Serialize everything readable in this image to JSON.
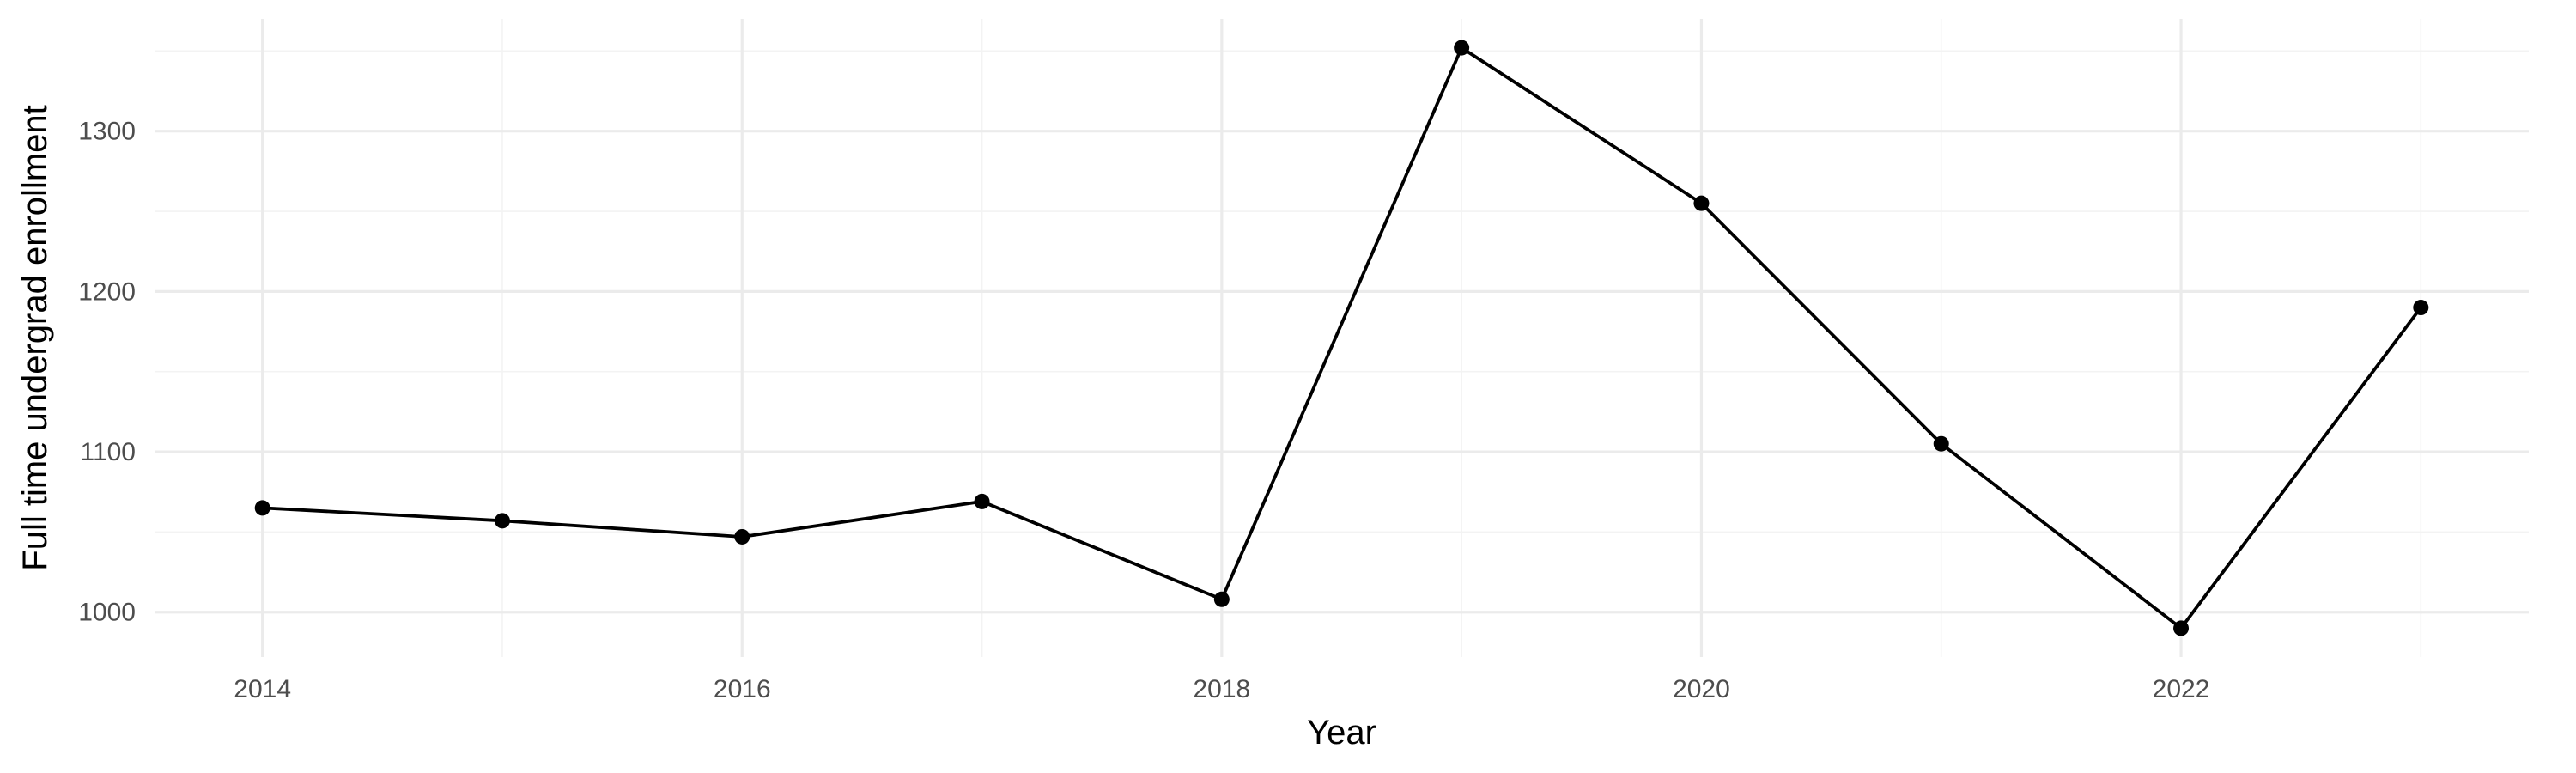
{
  "chart_data": {
    "type": "line",
    "title": "",
    "xlabel": "Year",
    "ylabel": "Full time undergrad enrollment",
    "x": [
      2014,
      2015,
      2016,
      2017,
      2018,
      2019,
      2020,
      2021,
      2022,
      2023
    ],
    "series": [
      {
        "values": [
          1065,
          1057,
          1047,
          1069,
          1008,
          1352,
          1255,
          1105,
          990,
          1190
        ],
        "color": "#000000"
      }
    ],
    "xlim": [
      2013.55,
      2023.45
    ],
    "ylim": [
      972,
      1370
    ],
    "x_ticks": [
      2014,
      2016,
      2018,
      2020,
      2022
    ],
    "x_tick_labels": [
      "2014",
      "2016",
      "2018",
      "2020",
      "2022"
    ],
    "y_ticks": [
      1000,
      1100,
      1200,
      1300
    ],
    "y_tick_labels": [
      "1000",
      "1100",
      "1200",
      "1300"
    ],
    "grid": true,
    "legend": "none"
  }
}
